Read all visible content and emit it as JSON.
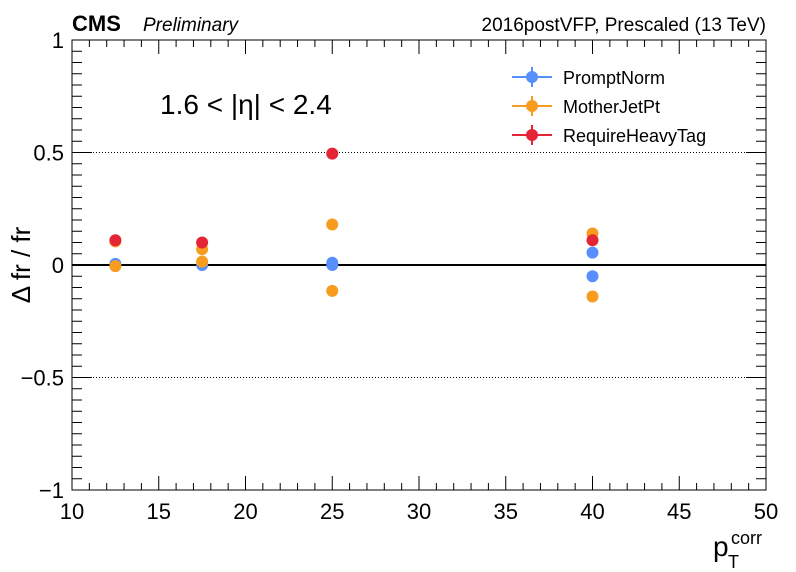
{
  "header": {
    "experiment": "CMS",
    "status": "Preliminary",
    "run_info": "2016postVFP, Prescaled (13 TeV)"
  },
  "chart_data": {
    "type": "scatter",
    "annotation": "1.6 < |η| < 2.4",
    "ylabel": "Δ fr / fr",
    "xlabel_main": "p",
    "xlabel_sub": "T",
    "xlabel_sup": "corr",
    "xlim": [
      10,
      50
    ],
    "ylim": [
      -1,
      1
    ],
    "xticks": [
      10,
      15,
      20,
      25,
      30,
      35,
      40,
      45,
      50
    ],
    "xtick_labels": [
      "10",
      "15",
      "20",
      "25",
      "30",
      "35",
      "40",
      "45",
      "50"
    ],
    "yticks": [
      -1,
      -0.5,
      0,
      0.5,
      1
    ],
    "ytick_labels": [
      "−1",
      "−0.5",
      "0",
      "0.5",
      "1"
    ],
    "reference_lines": [
      {
        "y": 0.5,
        "style": "dotted"
      },
      {
        "y": 0,
        "style": "solid"
      },
      {
        "y": -0.5,
        "style": "dotted"
      }
    ],
    "legend_position": "top-right",
    "series": [
      {
        "name": "PromptNorm",
        "color": "#5790fc",
        "points": [
          [
            12.5,
            0.005
          ],
          [
            17.5,
            0.0
          ],
          [
            25,
            0.0
          ],
          [
            25,
            0.01
          ],
          [
            40,
            0.055
          ],
          [
            40,
            -0.05
          ]
        ]
      },
      {
        "name": "MotherJetPt",
        "color": "#f89c20",
        "points": [
          [
            12.5,
            0.105
          ],
          [
            12.5,
            -0.005
          ],
          [
            17.5,
            0.07
          ],
          [
            17.5,
            0.015
          ],
          [
            25,
            0.18
          ],
          [
            25,
            -0.115
          ],
          [
            40,
            0.14
          ],
          [
            40,
            -0.14
          ]
        ]
      },
      {
        "name": "RequireHeavyTag",
        "color": "#e42536",
        "points": [
          [
            12.5,
            0.11
          ],
          [
            17.5,
            0.1
          ],
          [
            25,
            0.495
          ],
          [
            40,
            0.11
          ]
        ]
      }
    ]
  }
}
